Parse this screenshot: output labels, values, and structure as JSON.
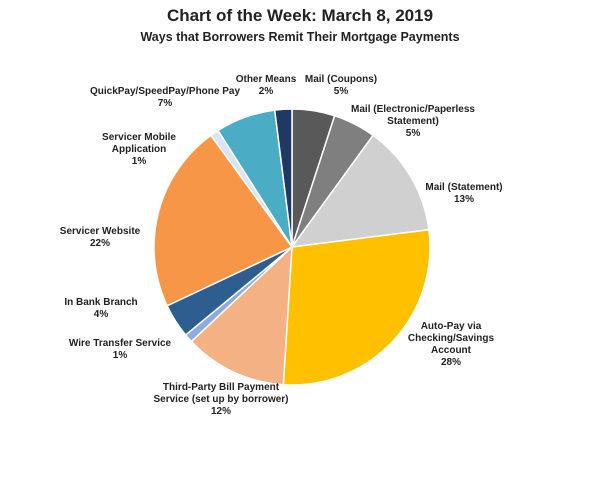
{
  "chart_data": {
    "type": "pie",
    "title": "Chart of the Week:  March 8, 2019",
    "subtitle": "Ways that Borrowers Remit Their Mortgage Payments",
    "slices": [
      {
        "name": "Mail (Coupons)",
        "value": 5,
        "display": "5%",
        "color": "#595959"
      },
      {
        "name": "Mail (Electronic/Paperless Statement)",
        "value": 5,
        "display": "5%",
        "color": "#7f7f7f"
      },
      {
        "name": "Mail (Statement)",
        "value": 13,
        "display": "13%",
        "color": "#d0d0d0"
      },
      {
        "name": "Auto-Pay via Checking/Savings Account",
        "value": 28,
        "display": "28%",
        "color": "#ffc000"
      },
      {
        "name": "Third-Party Bill Payment Service (set up by borrower)",
        "value": 12,
        "display": "12%",
        "color": "#f4b183"
      },
      {
        "name": "Wire Transfer Service",
        "value": 1,
        "display": "1%",
        "color": "#8faadc"
      },
      {
        "name": "In Bank Branch",
        "value": 4,
        "display": "4%",
        "color": "#2e5d8f"
      },
      {
        "name": "Servicer Website",
        "value": 22,
        "display": "22%",
        "color": "#f79646"
      },
      {
        "name": "Servicer Mobile Application",
        "value": 1,
        "display": "1%",
        "color": "#dbe5f1"
      },
      {
        "name": "QuickPay/SpeedPay/Phone  Pay",
        "value": 7,
        "display": "7%",
        "color": "#4bacc6"
      },
      {
        "name": "Other Means",
        "value": 2,
        "display": "2%",
        "color": "#1f3864"
      }
    ],
    "labels": [
      {
        "lines": [
          "Mail (Coupons)",
          "5%"
        ]
      },
      {
        "lines": [
          "Mail (Electronic/Paperless",
          "Statement)",
          "5%"
        ]
      },
      {
        "lines": [
          "Mail (Statement)",
          "13%"
        ]
      },
      {
        "lines": [
          "Auto-Pay via",
          "Checking/Savings",
          "Account",
          "28%"
        ]
      },
      {
        "lines": [
          "Third-Party  Bill Payment",
          "Service (set up by borrower)",
          "12%"
        ]
      },
      {
        "lines": [
          "Wire Transfer Service",
          "1%"
        ]
      },
      {
        "lines": [
          "In Bank Branch",
          "4%"
        ]
      },
      {
        "lines": [
          "Servicer Website",
          "22%"
        ]
      },
      {
        "lines": [
          "Servicer Mobile",
          "Application",
          "1%"
        ]
      },
      {
        "lines": [
          "QuickPay/SpeedPay/Phone  Pay",
          "7%"
        ]
      },
      {
        "lines": [
          "Other Means",
          "2%"
        ]
      }
    ]
  }
}
